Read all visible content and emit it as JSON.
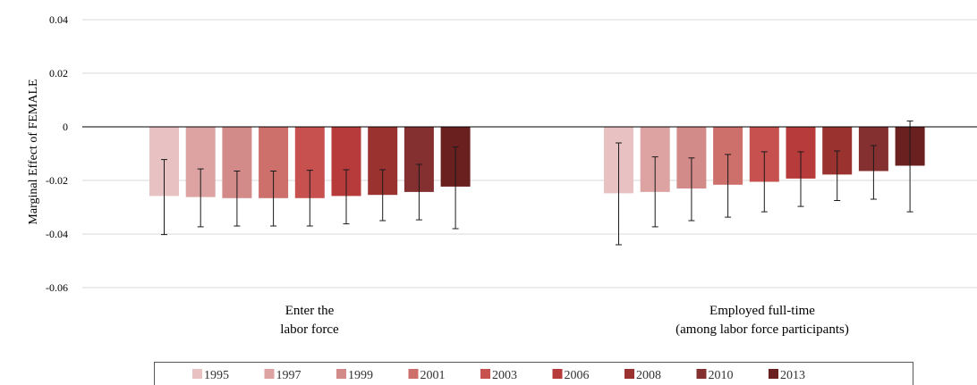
{
  "chart_data": {
    "type": "bar",
    "ylabel": "Marginal Effect of FEMALE",
    "xlabel": "",
    "ylim": [
      -0.06,
      0.04
    ],
    "yticks": [
      0.04,
      0.02,
      0,
      -0.02,
      -0.04,
      -0.06
    ],
    "ytick_labels": [
      "0.04",
      "0.02",
      "0",
      "-0.02",
      "-0.04",
      "-0.06"
    ],
    "grid": true,
    "legend_position": "bottom",
    "categories": [
      [
        "Enter the",
        "labor force"
      ],
      [
        "Employed full-time",
        "(among labor force participants)"
      ]
    ],
    "series": [
      {
        "name": "1995",
        "color": "#e8c2c2",
        "values": [
          -0.0258,
          -0.0248
        ],
        "ci": [
          [
            -0.0402,
            -0.0122
          ],
          [
            -0.044,
            -0.006
          ]
        ]
      },
      {
        "name": "1997",
        "color": "#dda3a3",
        "values": [
          -0.0262,
          -0.0243
        ],
        "ci": [
          [
            -0.0373,
            -0.0157
          ],
          [
            -0.0373,
            -0.0112
          ]
        ]
      },
      {
        "name": "1999",
        "color": "#d28b88",
        "values": [
          -0.0266,
          -0.023
        ],
        "ci": [
          [
            -0.037,
            -0.0165
          ],
          [
            -0.035,
            -0.0116
          ]
        ]
      },
      {
        "name": "2001",
        "color": "#cd6f6b",
        "values": [
          -0.0266,
          -0.0216
        ],
        "ci": [
          [
            -0.037,
            -0.0165
          ],
          [
            -0.0337,
            -0.0103
          ]
        ]
      },
      {
        "name": "2003",
        "color": "#c6514f",
        "values": [
          -0.0266,
          -0.0205
        ],
        "ci": [
          [
            -0.037,
            -0.0162
          ],
          [
            -0.0317,
            -0.0093
          ]
        ]
      },
      {
        "name": "2006",
        "color": "#b73b3a",
        "values": [
          -0.0258,
          -0.0193
        ],
        "ci": [
          [
            -0.0362,
            -0.016
          ],
          [
            -0.0297,
            -0.0093
          ]
        ]
      },
      {
        "name": "2008",
        "color": "#9a3330",
        "values": [
          -0.0254,
          -0.0178
        ],
        "ci": [
          [
            -0.035,
            -0.016
          ],
          [
            -0.0275,
            -0.009
          ]
        ]
      },
      {
        "name": "2010",
        "color": "#853030",
        "values": [
          -0.0243,
          -0.0165
        ],
        "ci": [
          [
            -0.0347,
            -0.014
          ],
          [
            -0.027,
            -0.007
          ]
        ]
      },
      {
        "name": "2013",
        "color": "#6b2020",
        "values": [
          -0.0223,
          -0.0145
        ],
        "ci": [
          [
            -0.038,
            -0.0075
          ],
          [
            -0.0317,
            0.0022
          ]
        ]
      }
    ]
  }
}
